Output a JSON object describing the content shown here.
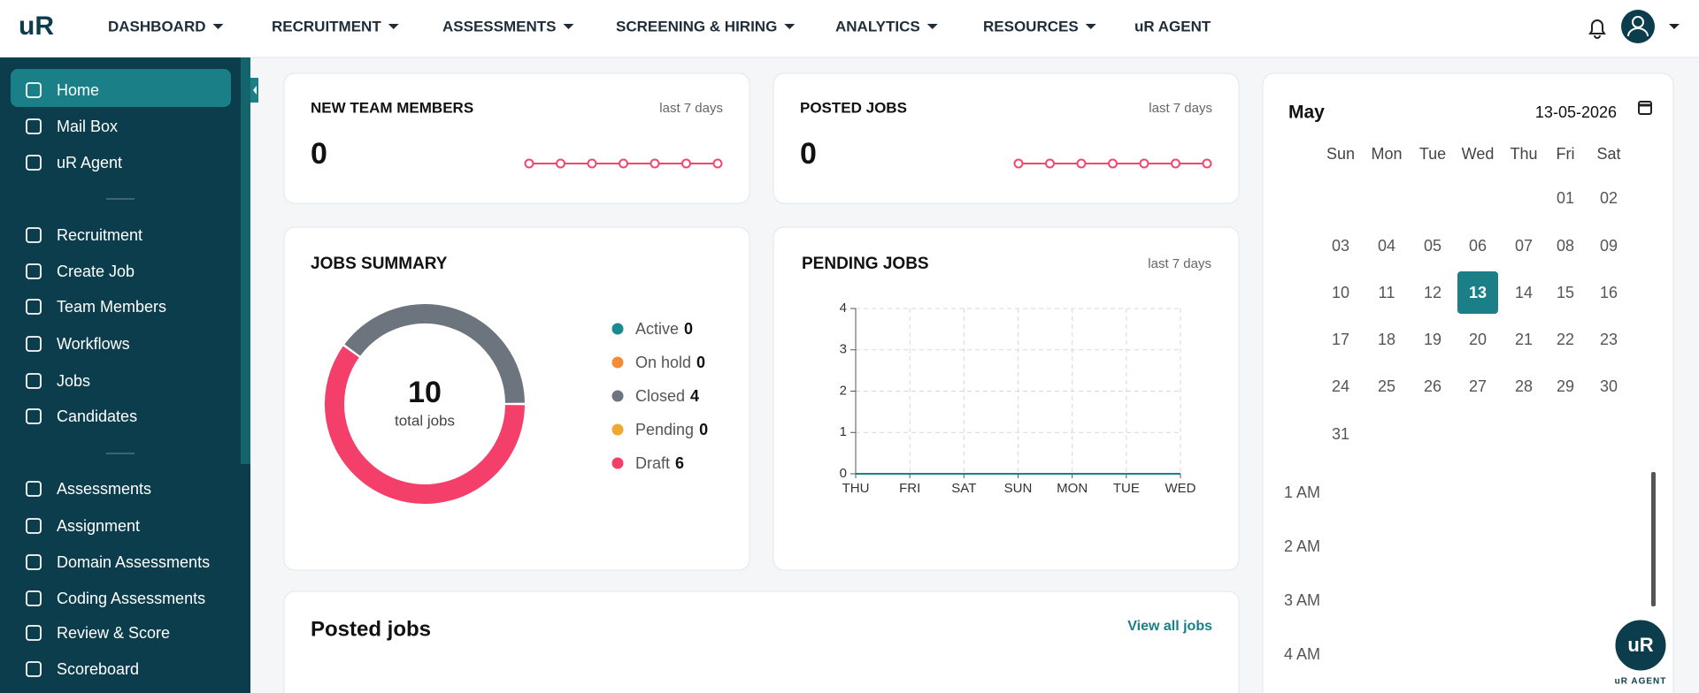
{
  "nav": {
    "logo": "uR",
    "items": [
      "DASHBOARD",
      "RECRUITMENT",
      "ASSESSMENTS",
      "SCREENING & HIRING",
      "ANALYTICS",
      "RESOURCES",
      "uR AGENT"
    ]
  },
  "sidebar": {
    "groups": [
      [
        "Home",
        "Mail Box",
        "uR Agent"
      ],
      [
        "Recruitment",
        "Create Job",
        "Team Members",
        "Workflows",
        "Jobs",
        "Candidates"
      ],
      [
        "Assessments",
        "Assignment",
        "Domain Assessments",
        "Coding Assessments",
        "Review & Score",
        "Scoreboard"
      ]
    ]
  },
  "new_team_members": {
    "title": "NEW TEAM MEMBERS",
    "period": "last 7 days",
    "value": 0,
    "trend": {
      "type": "line",
      "values": [
        0,
        0,
        0,
        0,
        0,
        0,
        0
      ],
      "color": "#f0476c"
    }
  },
  "posted_jobs_card": {
    "title": "POSTED JOBS",
    "period": "last 7 days",
    "value": 0,
    "trend": {
      "type": "line",
      "values": [
        0,
        0,
        0,
        0,
        0,
        0,
        0
      ],
      "color": "#f0476c"
    }
  },
  "jobs_summary": {
    "title": "JOBS SUMMARY",
    "total": 10,
    "total_label": "total jobs",
    "chart": {
      "type": "donut",
      "categories": [
        "Active",
        "On hold",
        "Closed",
        "Pending",
        "Draft"
      ],
      "values": [
        0,
        0,
        4,
        0,
        6
      ],
      "colors": [
        "#1a8a8f",
        "#f28c38",
        "#6c757d",
        "#f0a830",
        "#f43f6b"
      ]
    }
  },
  "pending_jobs": {
    "title": "PENDING JOBS",
    "period": "last 7 days",
    "chart": {
      "type": "line",
      "categories": [
        "THU",
        "FRI",
        "SAT",
        "SUN",
        "MON",
        "TUE",
        "WED"
      ],
      "values": [
        0,
        0,
        0,
        0,
        0,
        0,
        0
      ],
      "ylim": [
        0,
        4
      ],
      "yticks": [
        0,
        1,
        2,
        3,
        4
      ],
      "grid": true,
      "color": "#1a7f86"
    }
  },
  "calendar": {
    "month": "May",
    "date": "13-05-2026",
    "weekdays": [
      "Sun",
      "Mon",
      "Tue",
      "Wed",
      "Thu",
      "Fri",
      "Sat"
    ],
    "days": [
      "01",
      "02",
      "03",
      "04",
      "05",
      "06",
      "07",
      "08",
      "09",
      "10",
      "11",
      "12",
      "13",
      "14",
      "15",
      "16",
      "17",
      "18",
      "19",
      "20",
      "21",
      "22",
      "23",
      "24",
      "25",
      "26",
      "27",
      "28",
      "29",
      "30",
      "31"
    ],
    "times": [
      "1 AM",
      "2 AM",
      "3 AM",
      "4 AM"
    ]
  },
  "posted_jobs": {
    "title": "Posted jobs",
    "link": "View all jobs"
  },
  "badge": {
    "logo": "uR",
    "caption": "uR AGENT"
  }
}
